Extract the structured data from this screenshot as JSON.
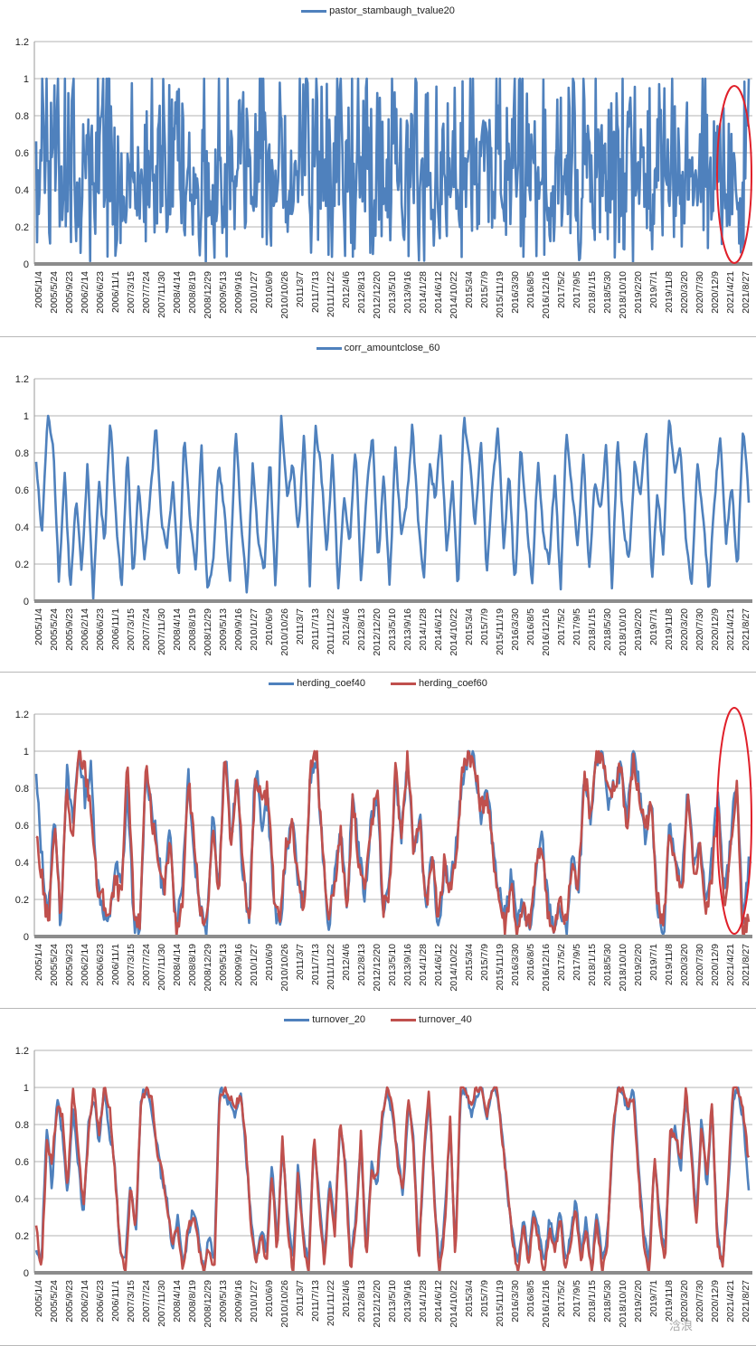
{
  "watermark": "浛浪",
  "chart_data": [
    {
      "type": "line",
      "title": "",
      "ylim": [
        0,
        1.2
      ],
      "yticks": [
        "0",
        "0.2",
        "0.4",
        "0.6",
        "0.8",
        "1",
        "1.2"
      ],
      "x_tick_labels": [
        "2005/1/4",
        "2005/5/24",
        "2005/9/23",
        "2006/2/14",
        "2006/6/23",
        "2006/11/1",
        "2007/3/15",
        "2007/7/24",
        "2007/11/30",
        "2008/4/14",
        "2008/8/19",
        "2008/12/29",
        "2009/5/13",
        "2009/9/16",
        "2010/1/27",
        "2010/6/9",
        "2010/10/26",
        "2011/3/7",
        "2011/7/13",
        "2011/11/22",
        "2012/4/6",
        "2012/8/13",
        "2012/12/20",
        "2013/5/10",
        "2013/9/16",
        "2014/1/28",
        "2014/6/12",
        "2014/10/22",
        "2015/3/4",
        "2015/7/9",
        "2015/11/19",
        "2016/3/30",
        "2016/8/5",
        "2016/12/16",
        "2017/5/2",
        "2017/9/5",
        "2018/1/15",
        "2018/5/30",
        "2018/10/10",
        "2019/2/20",
        "2019/7/1",
        "2019/11/8",
        "2020/3/20",
        "2020/7/30",
        "2020/12/9",
        "2021/4/21",
        "2021/8/27"
      ],
      "grid": true,
      "legend_position": "top",
      "annotation": "red ellipse highlighting most recent period",
      "series": [
        {
          "name": "pastor_stambaugh_tvalue20",
          "color": "#4f81bd",
          "pattern": "noisy",
          "seed": 11,
          "points": 820,
          "values": [
            0.2,
            0.9,
            0.1,
            0.7,
            0.3,
            0.95,
            0.05,
            0.6,
            0.4,
            0.85,
            0.15,
            0.75,
            0.25,
            1.0,
            0.0,
            0.55,
            0.45,
            0.9,
            0.1,
            0.8,
            0.2,
            0.65,
            0.35,
            0.95,
            0.05,
            0.7,
            0.3,
            0.88,
            0.12,
            0.6,
            0.4,
            0.92,
            0.08,
            0.78,
            0.22,
            0.5,
            0.5,
            1.0,
            0.0,
            0.68,
            0.32,
            0.83,
            0.17,
            0.72,
            0.28,
            0.96,
            0.04,
            0.58,
            0.42,
            0.86,
            0.14,
            0.74,
            0.26,
            0.9,
            0.1,
            0.62,
            0.38,
            0.97,
            0.03,
            0.7,
            0.3,
            0.84,
            0.16,
            0.76,
            0.24,
            0.93,
            0.07,
            0.66,
            0.34,
            0.88,
            0.12,
            0.55,
            0.45,
            1.0,
            0.0,
            0.8,
            0.2,
            0.64,
            0.36,
            0.91,
            0.09,
            0.73,
            0.27,
            0.87,
            0.13,
            0.6,
            0.4,
            0.95,
            0.05,
            0.69,
            0.31,
            0.82,
            0.18,
            0.77,
            0.23,
            0.52,
            0.03,
            0.85
          ]
        }
      ]
    },
    {
      "type": "line",
      "title": "",
      "ylim": [
        0,
        1.2
      ],
      "yticks": [
        "0",
        "0.2",
        "0.4",
        "0.6",
        "0.8",
        "1",
        "1.2"
      ],
      "x_tick_labels": [
        "2005/1/4",
        "2005/5/24",
        "2005/9/23",
        "2006/2/14",
        "2006/6/23",
        "2006/11/1",
        "2007/3/15",
        "2007/7/24",
        "2007/11/30",
        "2008/4/14",
        "2008/8/19",
        "2008/12/29",
        "2009/5/13",
        "2009/9/16",
        "2010/1/27",
        "2010/6/9",
        "2010/10/26",
        "2011/3/7",
        "2011/7/13",
        "2011/11/22",
        "2012/4/6",
        "2012/8/13",
        "2012/12/20",
        "2013/5/10",
        "2013/9/16",
        "2014/1/28",
        "2014/6/12",
        "2014/10/22",
        "2015/3/4",
        "2015/7/9",
        "2015/11/19",
        "2016/3/30",
        "2016/8/5",
        "2016/12/16",
        "2017/5/2",
        "2017/9/5",
        "2018/1/15",
        "2018/5/30",
        "2018/10/10",
        "2019/2/20",
        "2019/7/1",
        "2019/11/8",
        "2020/3/20",
        "2020/7/30",
        "2020/12/9",
        "2021/4/21",
        "2021/8/27"
      ],
      "grid": true,
      "legend_position": "top",
      "series": [
        {
          "name": "corr_amountclose_60",
          "color": "#4f81bd",
          "pattern": "smooth",
          "values": [
            0.75,
            0.35,
            1.0,
            0.85,
            0.1,
            0.7,
            0.05,
            0.55,
            0.15,
            0.75,
            0.02,
            0.65,
            0.3,
            1.0,
            0.45,
            0.05,
            0.85,
            0.1,
            0.65,
            0.2,
            0.55,
            0.95,
            0.4,
            0.3,
            0.65,
            0.1,
            0.9,
            0.45,
            0.15,
            0.85,
            0.05,
            0.2,
            0.75,
            0.5,
            0.1,
            0.95,
            0.4,
            0.05,
            0.75,
            0.3,
            0.15,
            0.8,
            0.05,
            1.0,
            0.55,
            0.75,
            0.35,
            0.9,
            0.1,
            0.95,
            0.7,
            0.25,
            0.8,
            0.05,
            0.55,
            0.3,
            0.85,
            0.1,
            0.6,
            0.9,
            0.2,
            0.7,
            0.05,
            0.85,
            0.35,
            0.55,
            0.95,
            0.45,
            0.1,
            0.75,
            0.55,
            0.9,
            0.25,
            0.65,
            0.05,
            1.0,
            0.8,
            0.4,
            0.9,
            0.15,
            0.6,
            0.95,
            0.3,
            0.7,
            0.05,
            0.85,
            0.45,
            0.1,
            0.75,
            0.35,
            0.2,
            0.7,
            0.05,
            0.9,
            0.6,
            0.3,
            0.8,
            0.15,
            0.65,
            0.5,
            0.85,
            0.05,
            0.9,
            0.4,
            0.2,
            0.75,
            0.55,
            0.95,
            0.1,
            0.6,
            0.25,
            1.0,
            0.7,
            0.85,
            0.3,
            0.1,
            0.75,
            0.45,
            0.05,
            0.55,
            0.9,
            0.3,
            0.65,
            0.15,
            0.95,
            0.55
          ]
        }
      ]
    },
    {
      "type": "line",
      "title": "",
      "ylim": [
        0,
        1.2
      ],
      "yticks": [
        "0",
        "0.2",
        "0.4",
        "0.6",
        "0.8",
        "1",
        "1.2"
      ],
      "x_tick_labels": [
        "2005/1/4",
        "2005/5/24",
        "2005/9/23",
        "2006/2/14",
        "2006/6/23",
        "2006/11/1",
        "2007/3/15",
        "2007/7/24",
        "2007/11/30",
        "2008/4/14",
        "2008/8/19",
        "2008/12/29",
        "2009/5/13",
        "2009/9/16",
        "2010/1/27",
        "2010/6/9",
        "2010/10/26",
        "2011/3/7",
        "2011/7/13",
        "2011/11/22",
        "2012/4/6",
        "2012/8/13",
        "2012/12/20",
        "2013/5/10",
        "2013/9/16",
        "2014/1/28",
        "2014/6/12",
        "2014/10/22",
        "2015/3/4",
        "2015/7/9",
        "2015/11/19",
        "2016/3/30",
        "2016/8/5",
        "2016/12/16",
        "2017/5/2",
        "2017/9/5",
        "2018/1/15",
        "2018/5/30",
        "2018/10/10",
        "2019/2/20",
        "2019/7/1",
        "2019/11/8",
        "2020/3/20",
        "2020/7/30",
        "2020/12/9",
        "2021/4/21",
        "2021/8/27"
      ],
      "grid": true,
      "legend_position": "top",
      "annotation": "red ellipse highlighting most recent period",
      "series": [
        {
          "name": "herding_coef40",
          "color": "#4f81bd",
          "pattern": "medium",
          "values": [
            0.85,
            0.4,
            0.1,
            0.7,
            0.05,
            0.9,
            0.6,
            1.0,
            0.75,
            0.9,
            0.3,
            0.15,
            0.05,
            0.4,
            0.25,
            0.8,
            0.1,
            0.0,
            0.9,
            0.7,
            0.45,
            0.2,
            0.6,
            0.05,
            0.3,
            0.9,
            0.4,
            0.15,
            0.05,
            0.7,
            0.25,
            1.0,
            0.55,
            0.85,
            0.3,
            0.1,
            0.95,
            0.6,
            0.75,
            0.2,
            0.0,
            0.45,
            0.65,
            0.3,
            0.15,
            0.85,
            0.95,
            0.5,
            0.05,
            0.35,
            0.6,
            0.1,
            0.8,
            0.45,
            0.2,
            0.65,
            0.75,
            0.1,
            0.3,
            0.85,
            0.55,
            0.95,
            0.4,
            0.7,
            0.1,
            0.45,
            0.05,
            0.35,
            0.3,
            0.5,
            0.85,
            1.0,
            0.95,
            0.65,
            0.8,
            0.5,
            0.25,
            0.1,
            0.35,
            0.05,
            0.2,
            0.0,
            0.3,
            0.55,
            0.2,
            0.05,
            0.15,
            0.0,
            0.45,
            0.2,
            0.85,
            0.6,
            0.95,
            1.0,
            0.7,
            0.85,
            0.9,
            0.6,
            1.0,
            0.8,
            0.55,
            0.75,
            0.15,
            0.0,
            0.65,
            0.4,
            0.25,
            0.8,
            0.35,
            0.55,
            0.15,
            0.45,
            0.8,
            0.2,
            0.5,
            0.9,
            0.05,
            0.4
          ]
        },
        {
          "name": "herding_coef60",
          "color": "#c0504d",
          "pattern": "medium",
          "values": [
            0.55,
            0.3,
            0.05,
            0.6,
            0.1,
            0.8,
            0.5,
            1.0,
            0.9,
            0.7,
            0.25,
            0.2,
            0.1,
            0.3,
            0.2,
            0.95,
            0.15,
            0.05,
            0.95,
            0.65,
            0.35,
            0.25,
            0.5,
            0.0,
            0.2,
            0.85,
            0.5,
            0.1,
            0.1,
            0.6,
            0.2,
            1.0,
            0.45,
            0.9,
            0.35,
            0.05,
            0.9,
            0.7,
            0.8,
            0.25,
            0.05,
            0.5,
            0.6,
            0.35,
            0.1,
            0.9,
            1.0,
            0.45,
            0.1,
            0.3,
            0.55,
            0.15,
            0.75,
            0.4,
            0.25,
            0.6,
            0.8,
            0.15,
            0.25,
            0.9,
            0.5,
            1.0,
            0.45,
            0.65,
            0.15,
            0.4,
            0.1,
            0.4,
            0.25,
            0.45,
            0.9,
            1.0,
            0.9,
            0.7,
            0.75,
            0.45,
            0.2,
            0.05,
            0.3,
            0.0,
            0.15,
            0.05,
            0.35,
            0.5,
            0.15,
            0.0,
            0.2,
            0.05,
            0.4,
            0.25,
            0.9,
            0.65,
            1.0,
            0.95,
            0.75,
            0.8,
            0.95,
            0.55,
            0.95,
            0.75,
            0.6,
            0.7,
            0.2,
            0.05,
            0.6,
            0.35,
            0.2,
            0.75,
            0.3,
            0.5,
            0.1,
            0.35,
            0.75,
            0.1,
            0.45,
            0.85,
            0.0,
            0.1
          ]
        }
      ]
    },
    {
      "type": "line",
      "title": "",
      "ylim": [
        0,
        1.2
      ],
      "yticks": [
        "0",
        "0.2",
        "0.4",
        "0.6",
        "0.8",
        "1",
        "1.2"
      ],
      "x_tick_labels": [
        "2005/1/4",
        "2005/5/24",
        "2005/9/23",
        "2006/2/14",
        "2006/6/23",
        "2006/11/1",
        "2007/3/15",
        "2007/7/24",
        "2007/11/30",
        "2008/4/14",
        "2008/8/19",
        "2008/12/29",
        "2009/5/13",
        "2009/9/16",
        "2010/1/27",
        "2010/6/9",
        "2010/10/26",
        "2011/3/7",
        "2011/7/13",
        "2011/11/22",
        "2012/4/6",
        "2012/8/13",
        "2012/12/20",
        "2013/5/10",
        "2013/9/16",
        "2014/1/28",
        "2014/6/12",
        "2014/10/22",
        "2015/3/4",
        "2015/7/9",
        "2015/11/19",
        "2016/3/30",
        "2016/8/5",
        "2016/12/16",
        "2017/5/2",
        "2017/9/5",
        "2018/1/15",
        "2018/5/30",
        "2018/10/10",
        "2019/2/20",
        "2019/7/1",
        "2019/11/8",
        "2020/3/20",
        "2020/7/30",
        "2020/12/9",
        "2021/4/21",
        "2021/8/27"
      ],
      "grid": true,
      "legend_position": "top",
      "series": [
        {
          "name": "turnover_20",
          "color": "#4f81bd",
          "pattern": "smooth",
          "values": [
            0.1,
            0.05,
            0.8,
            0.45,
            0.95,
            0.75,
            0.4,
            0.9,
            0.6,
            0.3,
            0.8,
            0.95,
            0.7,
            1.0,
            0.75,
            0.6,
            0.1,
            0.05,
            0.5,
            0.2,
            0.95,
            1.0,
            0.9,
            0.7,
            0.5,
            0.4,
            0.1,
            0.3,
            0.05,
            0.2,
            0.35,
            0.2,
            0.0,
            0.2,
            0.05,
            1.0,
            0.95,
            0.9,
            0.85,
            1.0,
            0.65,
            0.3,
            0.05,
            0.25,
            0.1,
            0.6,
            0.15,
            0.7,
            0.3,
            0.05,
            0.6,
            0.2,
            0.05,
            0.7,
            0.4,
            0.1,
            0.5,
            0.25,
            0.8,
            0.6,
            0.05,
            0.3,
            0.7,
            0.1,
            0.6,
            0.45,
            0.8,
            1.0,
            0.85,
            0.65,
            0.4,
            0.9,
            0.75,
            0.1,
            0.6,
            0.95,
            0.4,
            0.05,
            0.3,
            0.8,
            0.1,
            0.95,
            1.0,
            0.85,
            0.95,
            1.0,
            0.8,
            1.0,
            0.95,
            0.75,
            0.4,
            0.2,
            0.05,
            0.3,
            0.1,
            0.35,
            0.2,
            0.05,
            0.3,
            0.15,
            0.35,
            0.05,
            0.2,
            0.4,
            0.1,
            0.3,
            0.0,
            0.35,
            0.05,
            0.2,
            0.7,
            1.0,
            0.95,
            0.85,
            1.0,
            0.55,
            0.2,
            0.05,
            0.6,
            0.3,
            0.1,
            0.7,
            0.8,
            0.55,
            0.95,
            0.7,
            0.3,
            0.85,
            0.45,
            0.9,
            0.2,
            0.05,
            0.4,
            0.95,
            1.0,
            0.8,
            0.45
          ]
        },
        {
          "name": "turnover_40",
          "color": "#c0504d",
          "pattern": "smooth",
          "values": [
            0.25,
            0.0,
            0.7,
            0.6,
            0.9,
            0.85,
            0.45,
            1.0,
            0.7,
            0.35,
            0.75,
            1.0,
            0.75,
            1.0,
            0.9,
            0.55,
            0.15,
            0.0,
            0.45,
            0.25,
            0.9,
            1.0,
            0.95,
            0.65,
            0.55,
            0.35,
            0.15,
            0.25,
            0.0,
            0.25,
            0.3,
            0.15,
            0.0,
            0.15,
            0.0,
            0.95,
            1.0,
            0.95,
            0.9,
            0.95,
            0.7,
            0.25,
            0.05,
            0.2,
            0.05,
            0.55,
            0.1,
            0.75,
            0.25,
            0.0,
            0.55,
            0.15,
            0.0,
            0.75,
            0.35,
            0.05,
            0.45,
            0.2,
            0.85,
            0.55,
            0.0,
            0.25,
            0.75,
            0.05,
            0.55,
            0.5,
            0.85,
            1.0,
            0.9,
            0.6,
            0.45,
            0.95,
            0.7,
            0.05,
            0.65,
            1.0,
            0.35,
            0.0,
            0.25,
            0.85,
            0.05,
            1.0,
            1.0,
            0.9,
            1.0,
            1.0,
            0.85,
            1.0,
            1.0,
            0.7,
            0.45,
            0.15,
            0.0,
            0.25,
            0.05,
            0.3,
            0.15,
            0.0,
            0.25,
            0.1,
            0.3,
            0.0,
            0.15,
            0.35,
            0.05,
            0.25,
            0.0,
            0.3,
            0.0,
            0.15,
            0.75,
            1.0,
            1.0,
            0.9,
            0.95,
            0.5,
            0.15,
            0.0,
            0.65,
            0.25,
            0.05,
            0.75,
            0.75,
            0.6,
            1.0,
            0.65,
            0.25,
            0.8,
            0.5,
            0.95,
            0.15,
            0.05,
            0.45,
            1.0,
            1.0,
            0.85,
            0.6
          ]
        }
      ]
    }
  ]
}
